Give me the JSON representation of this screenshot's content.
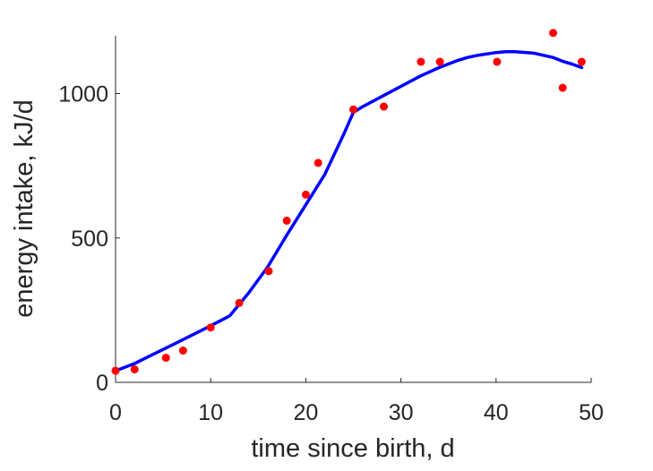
{
  "chart_data": {
    "type": "scatter",
    "xlabel": "time since birth, d",
    "ylabel": "energy intake, kJ/d",
    "xlim": [
      0,
      50
    ],
    "ylim": [
      0,
      1200
    ],
    "xticks": [
      0,
      10,
      20,
      30,
      40,
      50
    ],
    "yticks": [
      0,
      500,
      1000
    ],
    "grid": false,
    "legend": "none",
    "series": [
      {
        "kind": "points",
        "color": "#ff0000",
        "x": [
          0,
          2,
          5.3,
          7.1,
          10,
          13,
          16.1,
          18,
          20,
          21.3,
          25,
          28.2,
          32.1,
          34.1,
          40.1,
          46,
          47,
          49
        ],
        "y": [
          40,
          45,
          85,
          110,
          190,
          275,
          385,
          560,
          650,
          760,
          945,
          955,
          1110,
          1110,
          1110,
          1210,
          1020,
          1110
        ]
      },
      {
        "kind": "curve",
        "color": "#0000ff",
        "x": [
          0,
          2,
          4,
          6,
          8,
          10,
          12,
          13,
          14,
          16,
          18,
          20,
          22,
          24,
          25,
          26,
          28,
          30,
          32,
          34,
          36,
          37,
          38,
          40,
          41,
          42,
          44,
          46,
          47,
          48,
          49
        ],
        "y": [
          40,
          65,
          98,
          130,
          163,
          196,
          230,
          270,
          310,
          400,
          510,
          615,
          720,
          860,
          935,
          955,
          990,
          1025,
          1060,
          1090,
          1115,
          1125,
          1132,
          1142,
          1145,
          1145,
          1140,
          1125,
          1112,
          1102,
          1090
        ]
      }
    ]
  }
}
